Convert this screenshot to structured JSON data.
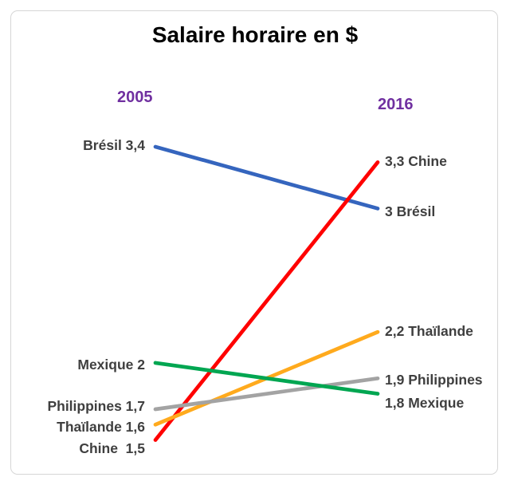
{
  "chart_data": {
    "type": "line",
    "subtype": "slopegraph",
    "title": "Salaire horaire en $",
    "x": [
      2005,
      2016
    ],
    "x_labels": [
      "2005",
      "2016"
    ],
    "ylim": [
      1.5,
      3.4
    ],
    "grid": false,
    "legend": "inline-labels",
    "year_label_color": "#7030A0",
    "label_color": "#3F3F3F",
    "title_color": "#000000",
    "series": [
      {
        "name": "Brésil",
        "values": [
          3.4,
          3.0
        ],
        "color": "#3565BE",
        "left_label": "Brésil 3,4",
        "right_label": "3 Brésil"
      },
      {
        "name": "Chine",
        "values": [
          1.5,
          3.3
        ],
        "color": "#FF0000",
        "left_label": "Chine  1,5",
        "right_label": "3,3 Chine"
      },
      {
        "name": "Thaïlande",
        "values": [
          1.6,
          2.2
        ],
        "color": "#FFAA1D",
        "left_label": "Thaïlande 1,6",
        "right_label": "2,2 Thaïlande"
      },
      {
        "name": "Philippines",
        "values": [
          1.7,
          1.9
        ],
        "color": "#A3A3A3",
        "left_label": "Philippines 1,7",
        "right_label": "1,9 Philippines"
      },
      {
        "name": "Mexique",
        "values": [
          2.0,
          1.8
        ],
        "color": "#00A651",
        "left_label": "Mexique 2",
        "right_label": "1,8 Mexique"
      }
    ]
  }
}
